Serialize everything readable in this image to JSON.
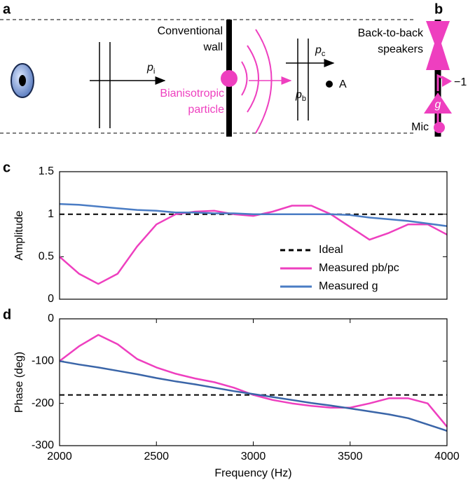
{
  "diagram": {
    "panel_a": "a",
    "panel_b": "b",
    "wall_line1": "Conventional",
    "wall_line2": "wall",
    "particle_line1": "Bianisotropic",
    "particle_line2": "particle",
    "pi": {
      "symbol": "p",
      "sub": "i"
    },
    "pb": {
      "symbol": "p",
      "sub": "b"
    },
    "pc": {
      "symbol": "p",
      "sub": "c"
    },
    "point": "A",
    "speakers_line1": "Back-to-back",
    "speakers_line2": "speakers",
    "gain_minus": "−1",
    "gain_g": "g",
    "mic": "Mic"
  },
  "chart_data": [
    {
      "type": "line",
      "panel_label": "c",
      "ylabel": "Amplitude",
      "x": [
        2000,
        2100,
        2200,
        2300,
        2400,
        2500,
        2600,
        2700,
        2800,
        2900,
        3000,
        3100,
        3200,
        3300,
        3400,
        3500,
        3600,
        3700,
        3800,
        3900,
        4000
      ],
      "xlim": [
        2000,
        4000
      ],
      "ylim": [
        0,
        1.5
      ],
      "yticks": [
        0,
        0.5,
        1,
        1.5
      ],
      "legend": true,
      "series": [
        {
          "name": "Ideal",
          "color": "#000000",
          "dash": true,
          "values": [
            1,
            1,
            1,
            1,
            1,
            1,
            1,
            1,
            1,
            1,
            1,
            1,
            1,
            1,
            1,
            1,
            1,
            1,
            1,
            1,
            1
          ]
        },
        {
          "name": "Measured pb/pc",
          "color": "#ee3fbf",
          "dash": false,
          "values": [
            0.5,
            0.3,
            0.18,
            0.3,
            0.62,
            0.88,
            1.0,
            1.03,
            1.04,
            1.0,
            0.98,
            1.03,
            1.1,
            1.1,
            1.0,
            0.85,
            0.7,
            0.78,
            0.88,
            0.88,
            0.76
          ]
        },
        {
          "name": "Measured g",
          "color": "#4a7cc4",
          "dash": false,
          "values": [
            1.12,
            1.11,
            1.09,
            1.07,
            1.05,
            1.04,
            1.02,
            1.02,
            1.01,
            1.01,
            1.0,
            1.0,
            1.0,
            1.0,
            1.0,
            0.99,
            0.96,
            0.94,
            0.92,
            0.89,
            0.86
          ]
        }
      ]
    },
    {
      "type": "line",
      "panel_label": "d",
      "ylabel": "Phase (deg)",
      "xlabel": "Frequency (Hz)",
      "x": [
        2000,
        2100,
        2200,
        2300,
        2400,
        2500,
        2600,
        2700,
        2800,
        2900,
        3000,
        3100,
        3200,
        3300,
        3400,
        3500,
        3600,
        3700,
        3800,
        3900,
        4000
      ],
      "xlim": [
        2000,
        4000
      ],
      "xticks": [
        2000,
        2500,
        3000,
        3500,
        4000
      ],
      "ylim": [
        -300,
        0
      ],
      "yticks": [
        -300,
        -200,
        -100,
        0
      ],
      "legend": false,
      "series": [
        {
          "color": "#000000",
          "dash": true,
          "values": [
            -180,
            -180,
            -180,
            -180,
            -180,
            -180,
            -180,
            -180,
            -180,
            -180,
            -180,
            -180,
            -180,
            -180,
            -180,
            -180,
            -180,
            -180,
            -180,
            -180,
            -180
          ]
        },
        {
          "color": "#ee3fbf",
          "dash": false,
          "values": [
            -100,
            -65,
            -38,
            -60,
            -95,
            -115,
            -130,
            -141,
            -150,
            -163,
            -180,
            -192,
            -200,
            -206,
            -210,
            -210,
            -200,
            -188,
            -188,
            -200,
            -255
          ]
        },
        {
          "color": "#3a65a8",
          "dash": false,
          "values": [
            -100,
            -108,
            -115,
            -123,
            -131,
            -140,
            -148,
            -155,
            -163,
            -171,
            -178,
            -185,
            -192,
            -199,
            -205,
            -212,
            -219,
            -226,
            -235,
            -250,
            -265
          ]
        }
      ]
    }
  ]
}
